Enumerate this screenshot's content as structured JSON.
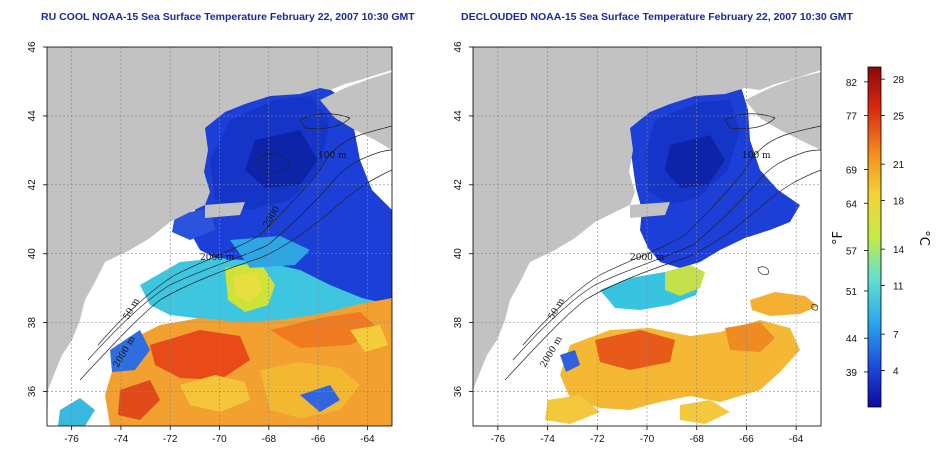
{
  "titles": {
    "left": "RU COOL NOAA-15 Sea Surface Temperature February 22, 2007 10:30 GMT",
    "right": "DECLOUDED NOAA-15 Sea Surface Temperature February 22, 2007 10:30 GMT"
  },
  "map": {
    "lon_ticks": [
      "-76",
      "-74",
      "-72",
      "-70",
      "-68",
      "-66",
      "-64"
    ],
    "lat_ticks": [
      "36",
      "38",
      "40",
      "42",
      "44",
      "46"
    ],
    "contour_labels_left": [
      "100 m",
      "2000 m",
      "50 m",
      "2000 m",
      "2000"
    ],
    "contour_labels_right": [
      "100 m",
      "2000 m",
      "50 m",
      "2000 m"
    ],
    "colors": {
      "land": "#c2c2c2",
      "ocean_no_data": "#ffffff",
      "grid": "#999999"
    }
  },
  "colorbar": {
    "fahrenheit_ticks": [
      "82",
      "77",
      "69",
      "64",
      "57",
      "51",
      "44",
      "39"
    ],
    "celsius_ticks": [
      "28",
      "25",
      "21",
      "18",
      "14",
      "11",
      "7",
      "4"
    ],
    "fahrenheit_unit": "°F",
    "celsius_unit": "°C",
    "range_c": [
      1,
      29
    ],
    "stops": [
      "#0a0a9c",
      "#1e4ee0",
      "#2aa8f0",
      "#5fe0d0",
      "#c4ec46",
      "#f4d238",
      "#f48a1e",
      "#dc2a10",
      "#8c0808"
    ]
  }
}
